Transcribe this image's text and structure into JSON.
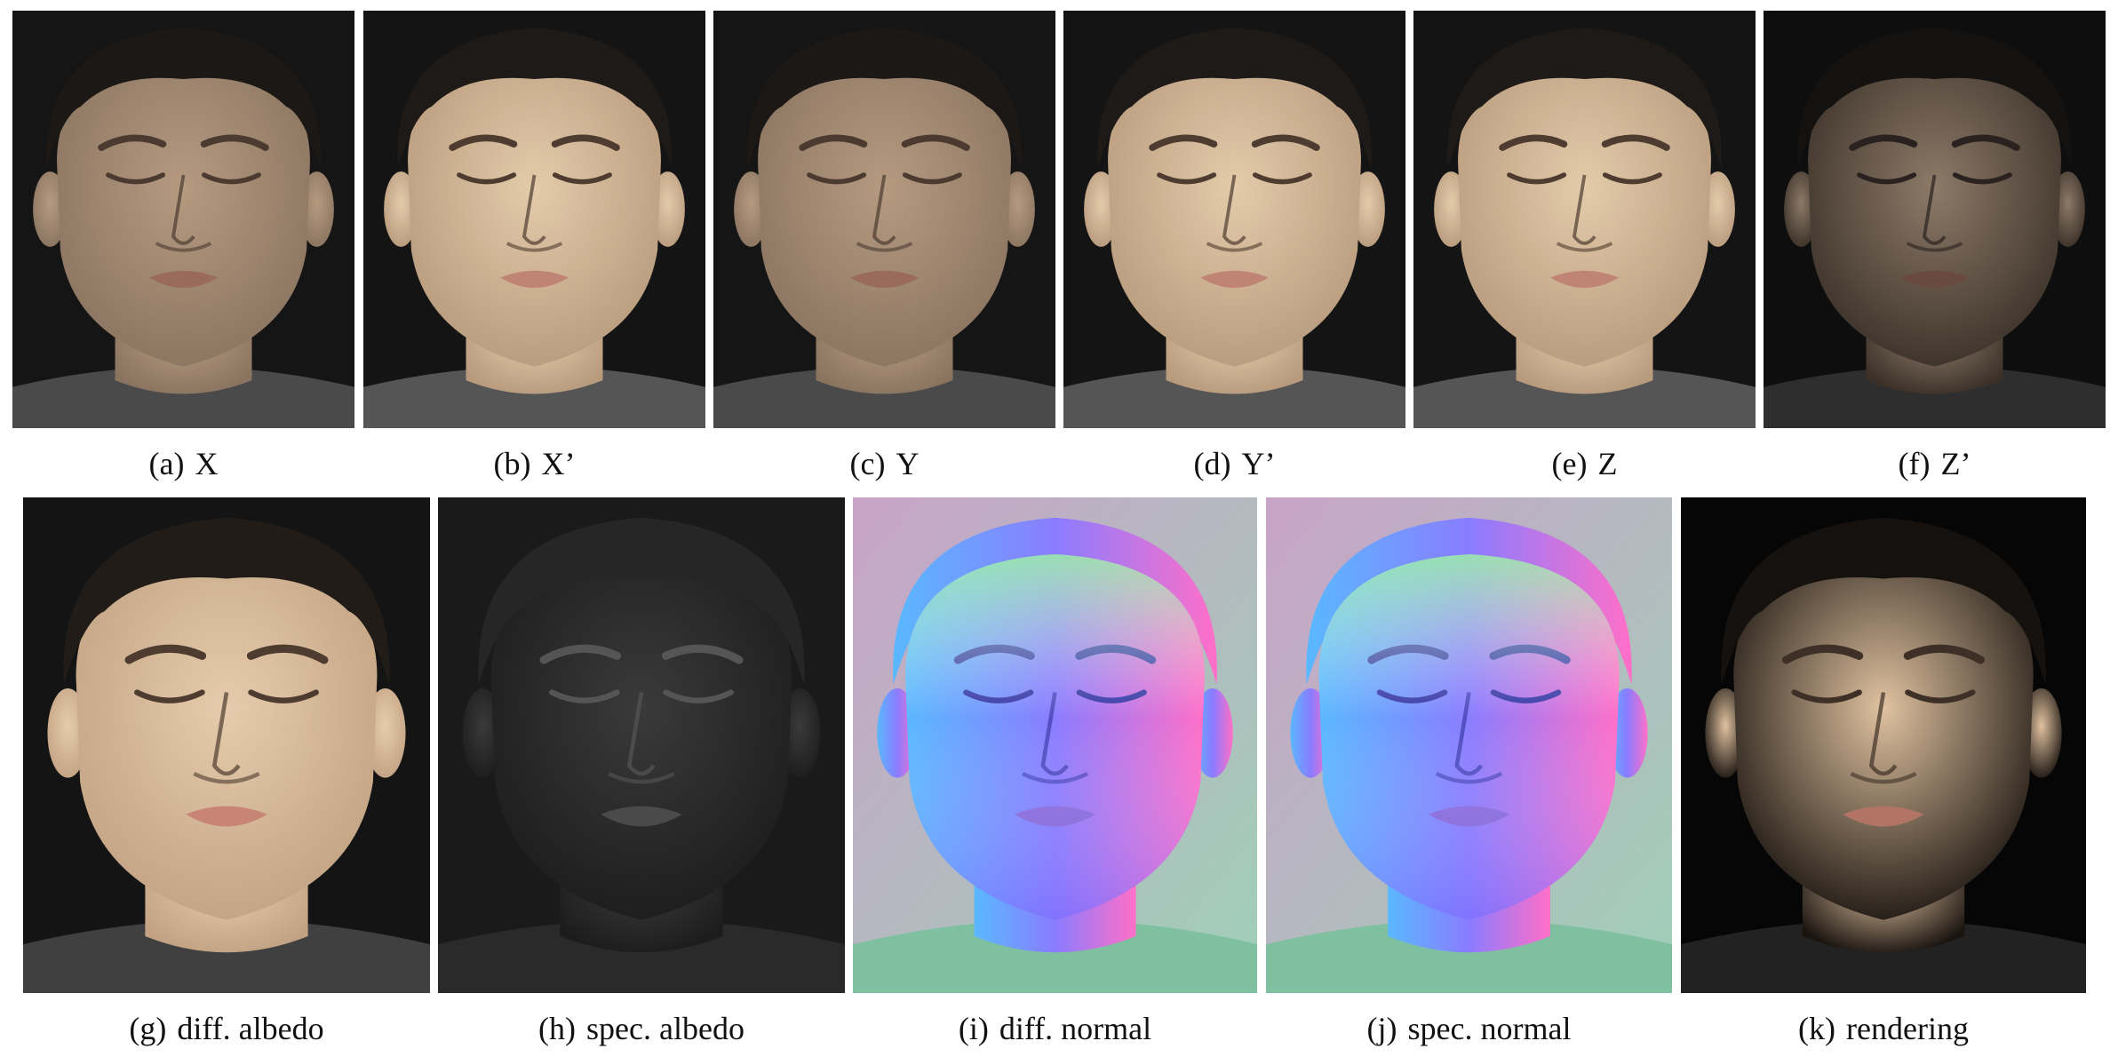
{
  "figure": {
    "row1": [
      {
        "letter": "(a)",
        "label": "X",
        "shade": "mid"
      },
      {
        "letter": "(b)",
        "label": "X’",
        "shade": "bright"
      },
      {
        "letter": "(c)",
        "label": "Y",
        "shade": "mid"
      },
      {
        "letter": "(d)",
        "label": "Y’",
        "shade": "bright"
      },
      {
        "letter": "(e)",
        "label": "Z",
        "shade": "bright"
      },
      {
        "letter": "(f)",
        "label": "Z’",
        "shade": "dark"
      }
    ],
    "row2": [
      {
        "letter": "(g)",
        "label": "diff. albedo",
        "kind": "albedo"
      },
      {
        "letter": "(h)",
        "label": "spec. albedo",
        "kind": "gray"
      },
      {
        "letter": "(i)",
        "label": "diff. normal",
        "kind": "normal"
      },
      {
        "letter": "(j)",
        "label": "spec. normal",
        "kind": "normal"
      },
      {
        "letter": "(k)",
        "label": "rendering",
        "kind": "rendering"
      }
    ]
  }
}
